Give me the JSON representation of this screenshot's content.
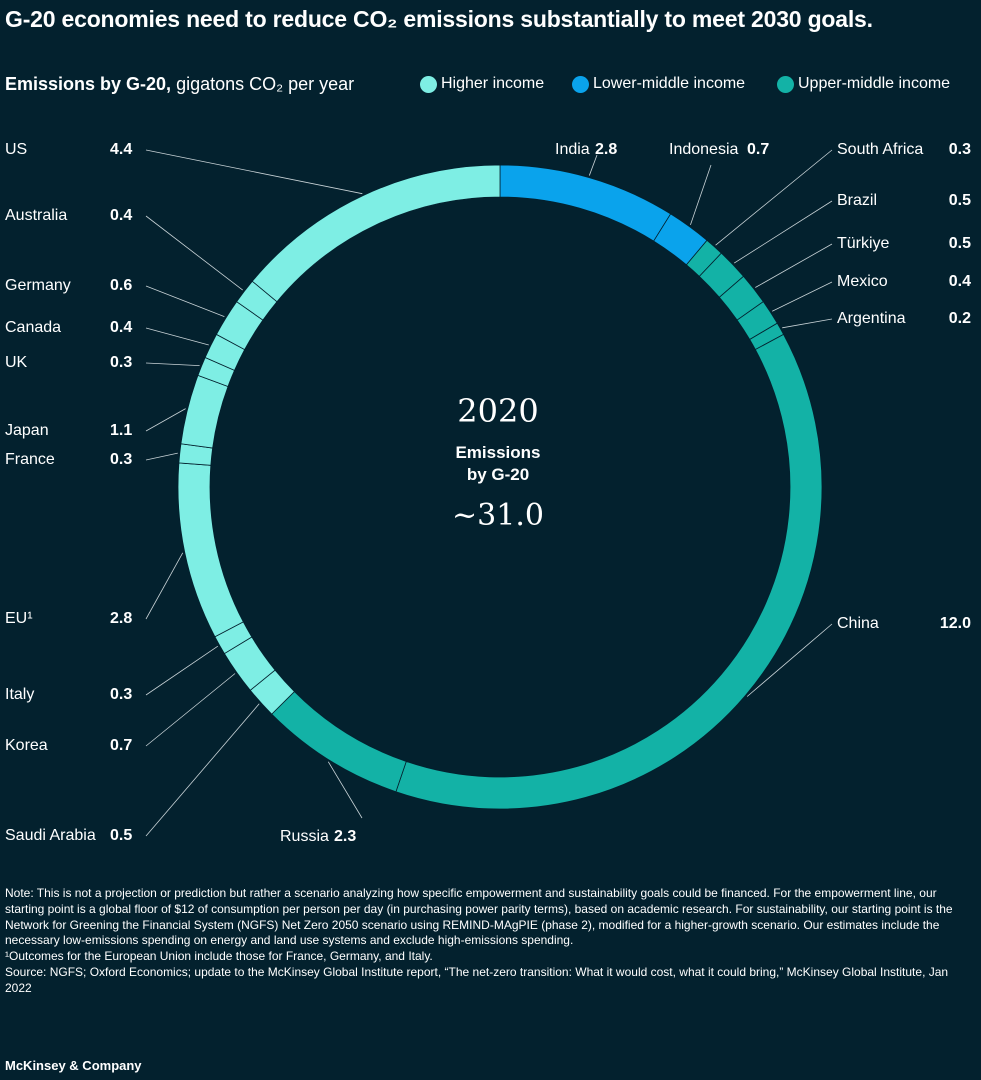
{
  "header": {
    "title": "G-20 economies need to reduce CO₂ emissions substantially to meet 2030 goals.",
    "subtitle_bold": "Emissions by G-20,",
    "subtitle_rest": " gigatons CO₂ per year"
  },
  "legend": [
    {
      "label": "Higher income",
      "color": "#7eeee4"
    },
    {
      "label": "Lower-middle income",
      "color": "#0aa3ec"
    },
    {
      "label": "Upper-middle income",
      "color": "#13b2a6"
    }
  ],
  "center": {
    "year": "2020",
    "label_line1": "Emissions",
    "label_line2": "by G-20",
    "total": "~31.0"
  },
  "chart_data": {
    "type": "pie",
    "title": "Emissions by G-20, gigatons CO₂ per year",
    "segments": [
      {
        "name": "India",
        "value": 2.8,
        "group": "Lower-middle income",
        "display": "2.8",
        "color": "#0aa3ec"
      },
      {
        "name": "Indonesia",
        "value": 0.7,
        "group": "Lower-middle income",
        "display": "0.7",
        "color": "#0aa3ec"
      },
      {
        "name": "South Africa",
        "value": 0.3,
        "group": "Upper-middle income",
        "display": "0.3",
        "color": "#13b2a6"
      },
      {
        "name": "Brazil",
        "value": 0.5,
        "group": "Upper-middle income",
        "display": "0.5",
        "color": "#13b2a6"
      },
      {
        "name": "Türkiye",
        "value": 0.5,
        "group": "Upper-middle income",
        "display": "0.5",
        "color": "#13b2a6"
      },
      {
        "name": "Mexico",
        "value": 0.4,
        "group": "Upper-middle income",
        "display": "0.4",
        "color": "#13b2a6"
      },
      {
        "name": "Argentina",
        "value": 0.2,
        "group": "Upper-middle income",
        "display": "0.2",
        "color": "#13b2a6"
      },
      {
        "name": "China",
        "value": 12.0,
        "group": "Upper-middle income",
        "display": "12.0",
        "color": "#13b2a6"
      },
      {
        "name": "Russia",
        "value": 2.3,
        "group": "Upper-middle income",
        "display": "2.3",
        "color": "#13b2a6"
      },
      {
        "name": "Saudi Arabia",
        "value": 0.5,
        "group": "Higher income",
        "display": "0.5",
        "color": "#7eeee4"
      },
      {
        "name": "Korea",
        "value": 0.7,
        "group": "Higher income",
        "display": "0.7",
        "color": "#7eeee4"
      },
      {
        "name": "Italy",
        "value": 0.3,
        "group": "Higher income",
        "display": "0.3",
        "color": "#7eeee4"
      },
      {
        "name": "EU¹",
        "value": 2.8,
        "group": "Higher income",
        "display": "2.8",
        "color": "#7eeee4"
      },
      {
        "name": "France",
        "value": 0.3,
        "group": "Higher income",
        "display": "0.3",
        "color": "#7eeee4"
      },
      {
        "name": "Japan",
        "value": 1.1,
        "group": "Higher income",
        "display": "1.1",
        "color": "#7eeee4"
      },
      {
        "name": "UK",
        "value": 0.3,
        "group": "Higher income",
        "display": "0.3",
        "color": "#7eeee4"
      },
      {
        "name": "Canada",
        "value": 0.4,
        "group": "Higher income",
        "display": "0.4",
        "color": "#7eeee4"
      },
      {
        "name": "Germany",
        "value": 0.6,
        "group": "Higher income",
        "display": "0.6",
        "color": "#7eeee4"
      },
      {
        "name": "Australia",
        "value": 0.4,
        "group": "Higher income",
        "display": "0.4",
        "color": "#7eeee4"
      },
      {
        "name": "US",
        "value": 4.4,
        "group": "Higher income",
        "display": "4.4",
        "color": "#7eeee4"
      }
    ]
  },
  "notes": {
    "note": "Note: This is not a projection or prediction but rather a scenario analyzing how specific empowerment and sustainability goals could be financed. For the empowerment line, our starting point is a global floor of $12 of consumption per person per day (in purchasing power parity terms), based on academic research. For sustainability, our starting point is the Network for Greening the Financial System (NGFS) Net Zero 2050 scenario using REMIND-MAgPIE (phase 2), modified for a higher-growth scenario. Our estimates include the necessary low-emissions spending on energy and land use systems and exclude high-emissions spending.",
    "footnote": "¹Outcomes for the European Union include those for France, Germany, and Italy.",
    "source": "Source: NGFS; Oxford Economics; update to the McKinsey Global Institute report, “The net-zero transition: What it would cost, what it could bring,” McKinsey Global Institute, Jan 2022"
  },
  "brand": "McKinsey & Company"
}
